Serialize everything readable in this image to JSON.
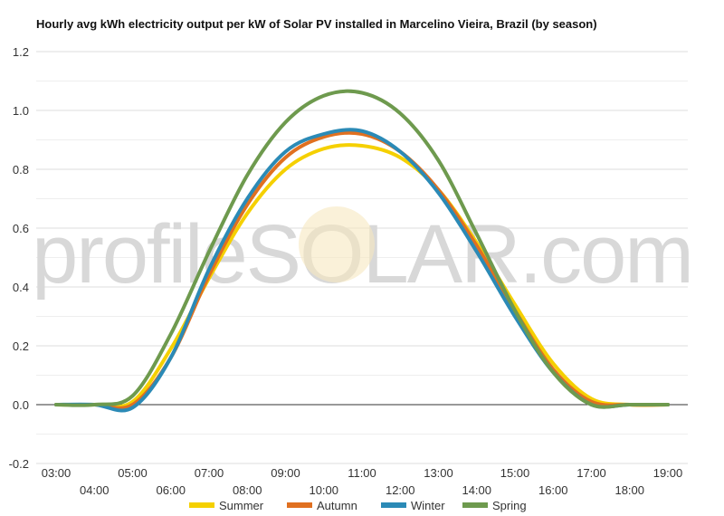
{
  "chart_data": {
    "type": "line",
    "title": "Hourly avg kWh electricity output per kW of Solar PV installed in Marcelino Vieira, Brazil (by season)",
    "xlabel": "",
    "ylabel": "",
    "ylim": [
      -0.2,
      1.2
    ],
    "yticks": [
      -0.2,
      0.0,
      0.2,
      0.4,
      0.6,
      0.8,
      1.0,
      1.2
    ],
    "ytick_labels": [
      "-0.2",
      "0.0",
      "0.2",
      "0.4",
      "0.6",
      "0.8",
      "1.0",
      "1.2"
    ],
    "xlim": [
      3,
      19
    ],
    "xtick_labels": [
      "03:00",
      "04:00",
      "05:00",
      "06:00",
      "07:00",
      "08:00",
      "09:00",
      "10:00",
      "11:00",
      "12:00",
      "13:00",
      "14:00",
      "15:00",
      "16:00",
      "17:00",
      "18:00",
      "19:00"
    ],
    "grid": true,
    "legend_position": "bottom",
    "watermark": "profileSOLAR.com",
    "x": [
      3,
      4,
      5,
      6,
      7,
      8,
      9,
      10,
      11,
      12,
      13,
      14,
      15,
      16,
      17,
      18,
      19
    ],
    "series": [
      {
        "name": "Summer",
        "color": "#F5D000",
        "values": [
          0,
          0,
          0.01,
          0.19,
          0.43,
          0.65,
          0.8,
          0.87,
          0.88,
          0.84,
          0.73,
          0.55,
          0.34,
          0.14,
          0.02,
          0,
          0
        ]
      },
      {
        "name": "Autumn",
        "color": "#E07020",
        "values": [
          0,
          0,
          0,
          0.16,
          0.44,
          0.68,
          0.84,
          0.91,
          0.92,
          0.86,
          0.73,
          0.54,
          0.32,
          0.12,
          0.01,
          0,
          0
        ]
      },
      {
        "name": "Winter",
        "color": "#2B8AB6",
        "values": [
          0,
          0,
          -0.01,
          0.16,
          0.46,
          0.7,
          0.86,
          0.92,
          0.93,
          0.86,
          0.72,
          0.52,
          0.3,
          0.11,
          0,
          0,
          0
        ]
      },
      {
        "name": "Spring",
        "color": "#6E9A4E",
        "values": [
          0,
          0,
          0.03,
          0.24,
          0.52,
          0.78,
          0.96,
          1.05,
          1.06,
          0.99,
          0.83,
          0.58,
          0.32,
          0.11,
          0,
          0,
          0
        ]
      }
    ]
  }
}
